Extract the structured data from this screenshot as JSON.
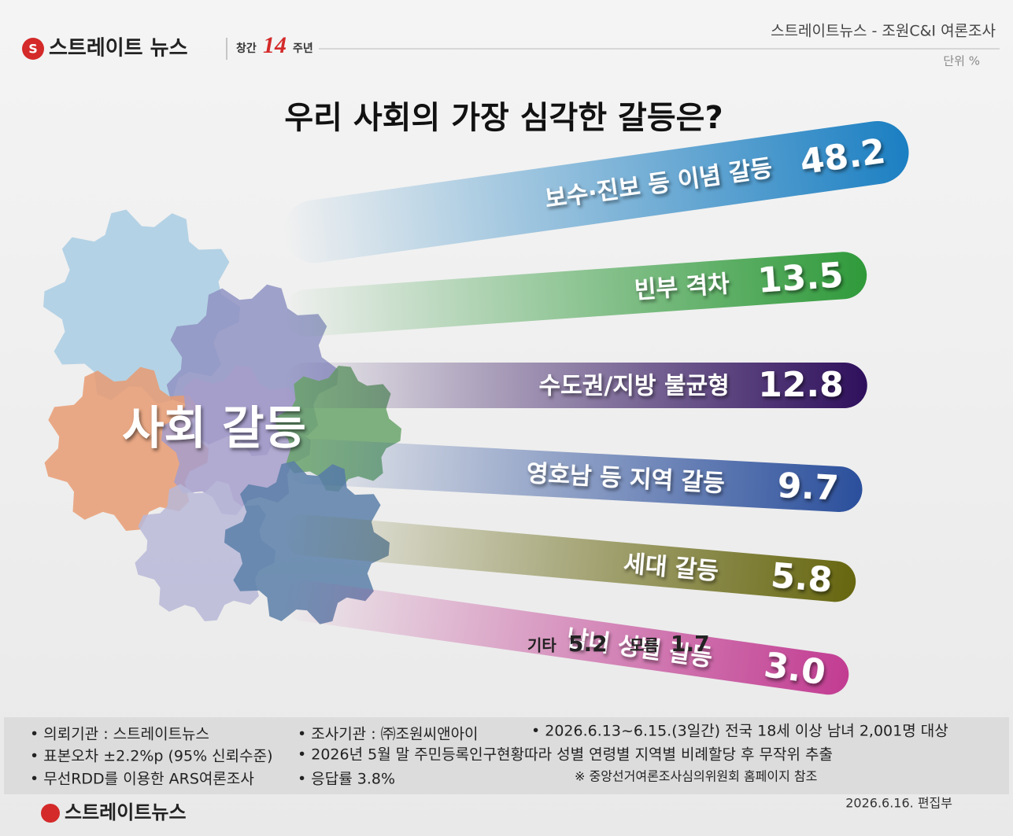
{
  "header": {
    "brand": "스트레이트 뉴스",
    "anniversary_prefix": "창간",
    "anniversary_number": "14",
    "anniversary_suffix": "주년",
    "source": "스트레이트뉴스 - 조원C&I 여론조사",
    "unit": "단위 %"
  },
  "center_label": "사회 갈등",
  "chart_data": {
    "type": "ribbon-bar",
    "title": "우리 사회의 가장 심각한 갈등은?",
    "categories": [
      "보수·진보 등 이념 갈등",
      "빈부 격차",
      "수도권/지방 불균형",
      "영호남 등 지역 갈등",
      "세대 갈등",
      "남녀 성별 갈등"
    ],
    "values": [
      48.2,
      13.5,
      12.8,
      9.7,
      5.8,
      3.0
    ],
    "value_labels": [
      "48.2",
      "13.5",
      "12.8",
      "9.7",
      "5.8",
      "3.0"
    ],
    "colors": [
      "#1b7fc2",
      "#2f9a3a",
      "#2e0f5c",
      "#2b4f9c",
      "#66660f",
      "#c23c92"
    ],
    "others": [
      {
        "label": "기타",
        "value": 5.2
      },
      {
        "label": "모름",
        "value": 1.7
      }
    ]
  },
  "footer": {
    "notes": [
      "• 의뢰기관 : 스트레이트뉴스",
      "• 조사기관 : ㈜조원씨앤아이",
      "• 2026.6.13~6.15.(3일간) 전국 18세 이상 남녀 2,001명 대상",
      "• 표본오차 ±2.2%p (95% 신뢰수준)",
      "• 2026년 5월 말 주민등록인구현황따라 성별 연령별 지역별 비례할당 후 무작위 추출",
      "• 무선RDD를 이용한 ARS여론조사",
      "• 응답률 3.8%",
      "※ 중앙선거여론조사심의위원회 홈페이지 참조"
    ],
    "brand": "스트레이트뉴스",
    "date": "2026.6.16.  편집부"
  }
}
